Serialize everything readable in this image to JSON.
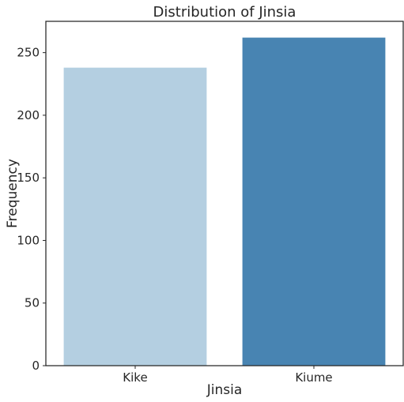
{
  "chart_data": {
    "type": "bar",
    "title": "Distribution of Jinsia",
    "xlabel": "Jinsia",
    "ylabel": "Frequency",
    "categories": [
      "Kike",
      "Kiume"
    ],
    "values": [
      238,
      262
    ],
    "colors": [
      "#b4cfe1",
      "#4884b2"
    ],
    "ylim": [
      0,
      275
    ],
    "yticks": [
      0,
      50,
      100,
      150,
      200,
      250
    ],
    "grid": false,
    "legend": "none"
  }
}
